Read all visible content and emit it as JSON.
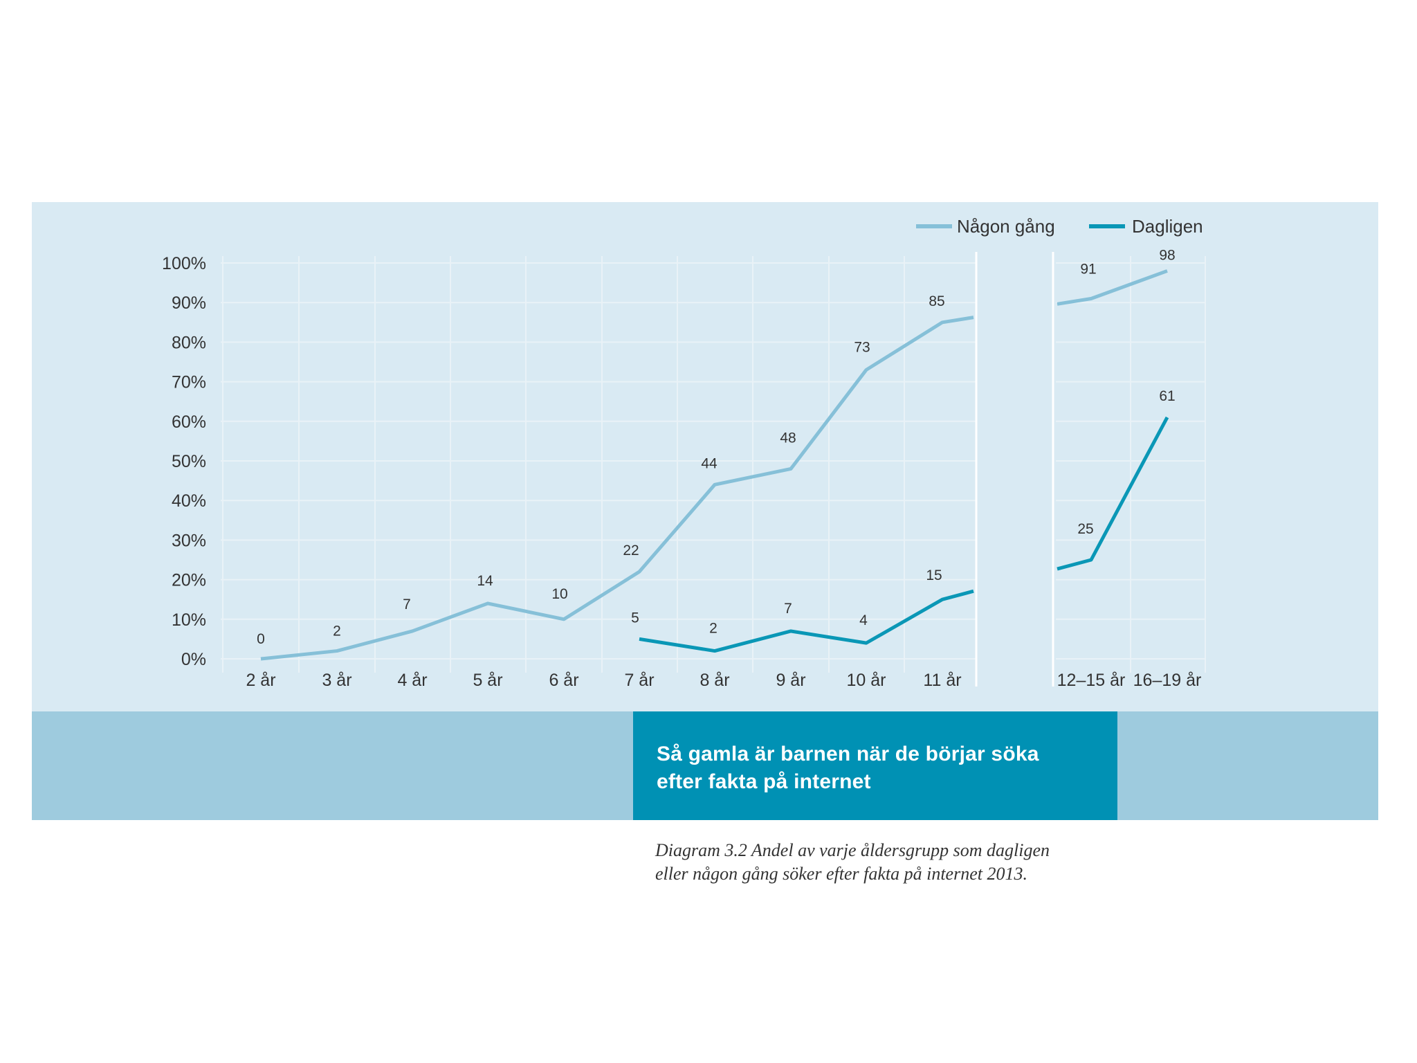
{
  "chart_data": {
    "type": "line",
    "title": "Så gamla är barnen när de börjar söka efter fakta på internet",
    "title_lines": [
      "Så gamla är barnen när de börjar söka",
      "efter fakta på internet"
    ],
    "caption_lines": [
      "Diagram 3.2 Andel av varje åldersgrupp som dagligen",
      "eller någon gång söker efter fakta på internet 2013."
    ],
    "categories": [
      "2 år",
      "3 år",
      "4 år",
      "5 år",
      "6 år",
      "7 år",
      "8 år",
      "9 år",
      "10 år",
      "11 år",
      "12–15 år",
      "16–19 år"
    ],
    "y_ticks": [
      "0%",
      "10%",
      "20%",
      "30%",
      "40%",
      "50%",
      "60%",
      "70%",
      "80%",
      "90%",
      "100%"
    ],
    "ylim": [
      0,
      100
    ],
    "axis_break": "between 11 år and 12–15 år",
    "grid": true,
    "legend_position": "top-right",
    "series": [
      {
        "name": "Någon gång",
        "color": "#86c0d8",
        "values": [
          0,
          2,
          7,
          14,
          10,
          22,
          44,
          48,
          73,
          85,
          91,
          98
        ]
      },
      {
        "name": "Dagligen",
        "color": "#0a97b6",
        "values": [
          null,
          null,
          null,
          null,
          null,
          5,
          2,
          7,
          4,
          15,
          25,
          61
        ]
      }
    ]
  }
}
